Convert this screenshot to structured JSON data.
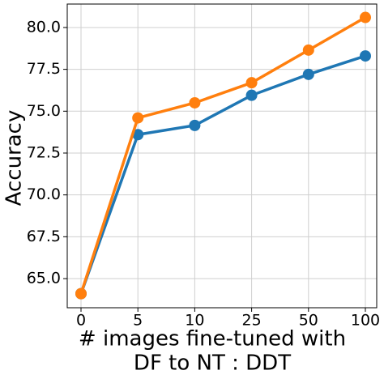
{
  "chart_data": {
    "type": "line",
    "xlabel": [
      "# images fine-tuned with",
      "DF to NT : DDT"
    ],
    "ylabel": "Accuracy",
    "categories": [
      "0",
      "5",
      "10",
      "25",
      "50",
      "100"
    ],
    "series": [
      {
        "color": "#1f77b4",
        "values": [
          64.1,
          73.6,
          74.15,
          75.95,
          77.2,
          78.3
        ]
      },
      {
        "color": "#ff7f0e",
        "values": [
          64.1,
          74.6,
          75.5,
          76.7,
          78.65,
          80.6
        ]
      }
    ],
    "ylim": [
      63.26,
      81.4
    ],
    "yticks": [
      {
        "value": 65,
        "label": "65.0"
      },
      {
        "value": 67.5,
        "label": "67.5"
      },
      {
        "value": 70,
        "label": "70.0"
      },
      {
        "value": 72.5,
        "label": "72.5"
      },
      {
        "value": 75,
        "label": "75.0"
      },
      {
        "value": 77.5,
        "label": "77.5"
      },
      {
        "value": 80,
        "label": "80.0"
      }
    ],
    "grid": true
  }
}
